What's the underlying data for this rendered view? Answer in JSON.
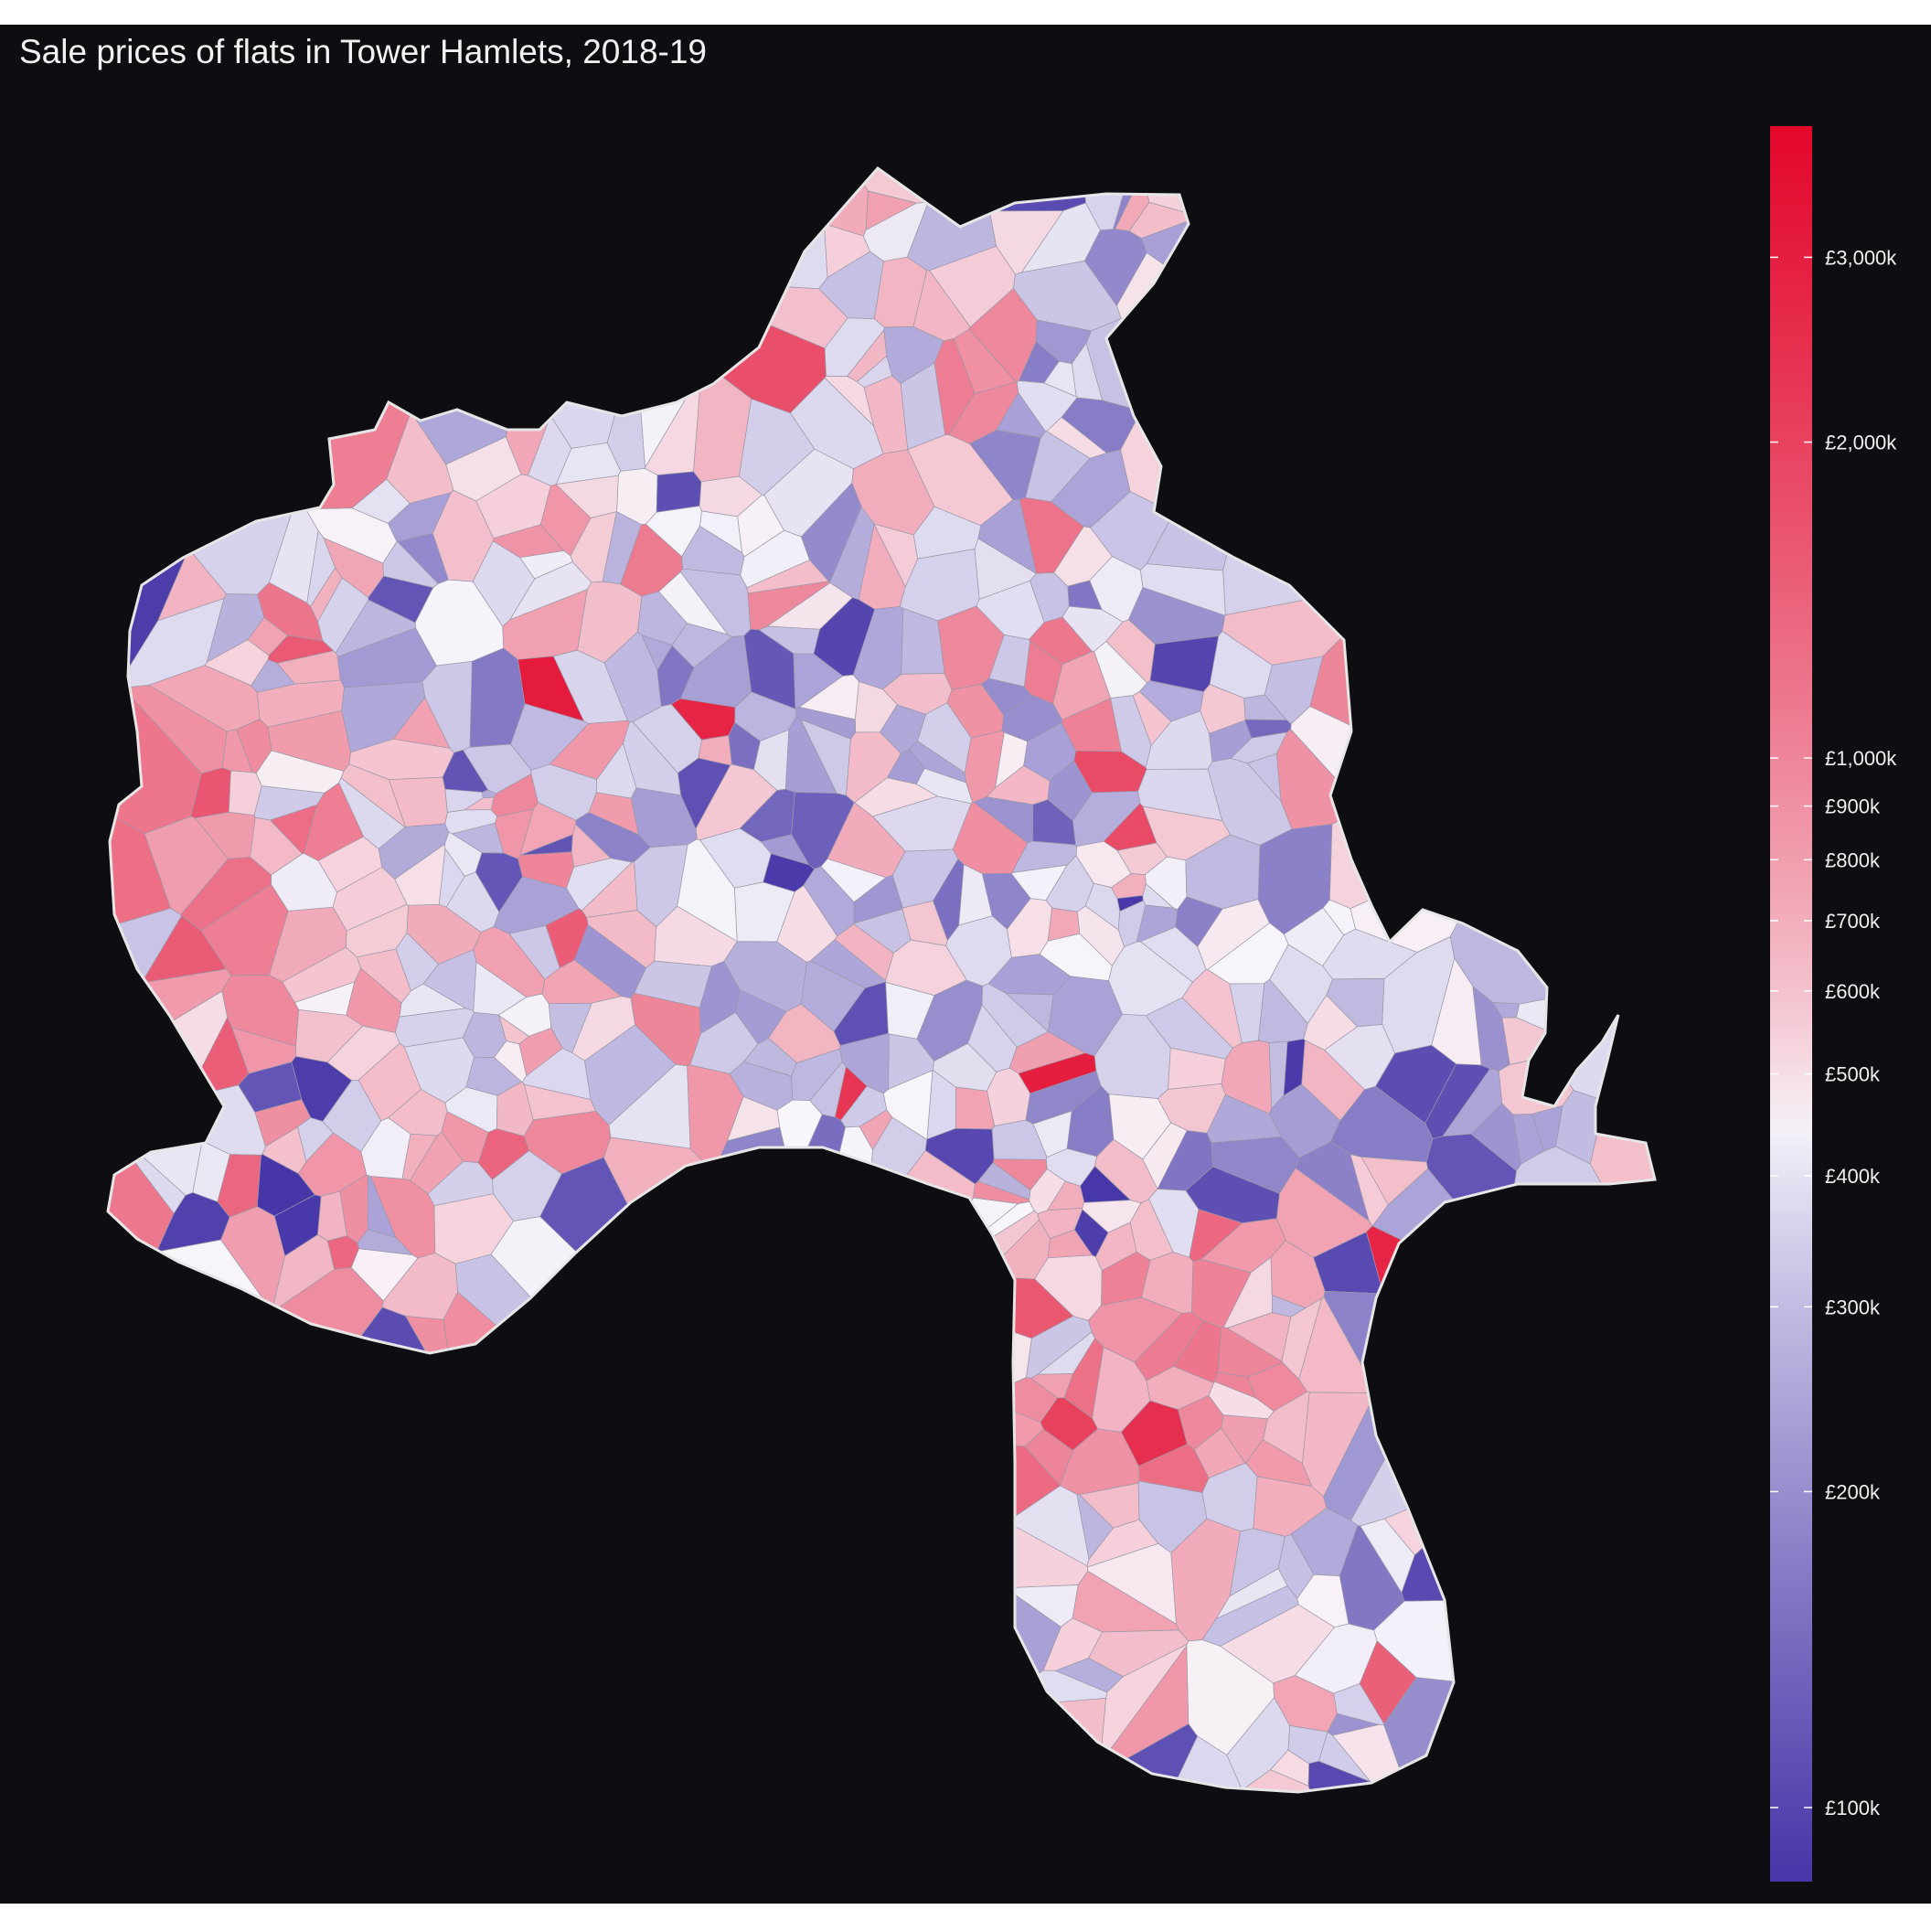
{
  "title": "Sale prices of flats in Tower Hamlets, 2018-19",
  "map": {
    "subject": "Tower Hamlets borough",
    "background_color": "#0e0e12",
    "outline_color": "#e6e6e6"
  },
  "legend": {
    "type": "continuous colour bar",
    "scale": "log",
    "range": [
      85,
      4000
    ],
    "low_color": "#4636a8",
    "mid_color": "#f8f6fb",
    "high_color": "#e3062b",
    "mid_value": 450,
    "ticks": [
      {
        "value": 100,
        "label": "£100k"
      },
      {
        "value": 200,
        "label": "£200k"
      },
      {
        "value": 300,
        "label": "£300k"
      },
      {
        "value": 400,
        "label": "£400k"
      },
      {
        "value": 500,
        "label": "£500k"
      },
      {
        "value": 600,
        "label": "£600k"
      },
      {
        "value": 700,
        "label": "£700k"
      },
      {
        "value": 800,
        "label": "£800k"
      },
      {
        "value": 900,
        "label": "£900k"
      },
      {
        "value": 1000,
        "label": "£1,000k"
      },
      {
        "value": 2000,
        "label": "£2,000k"
      },
      {
        "value": 3000,
        "label": "£3,000k"
      }
    ]
  }
}
